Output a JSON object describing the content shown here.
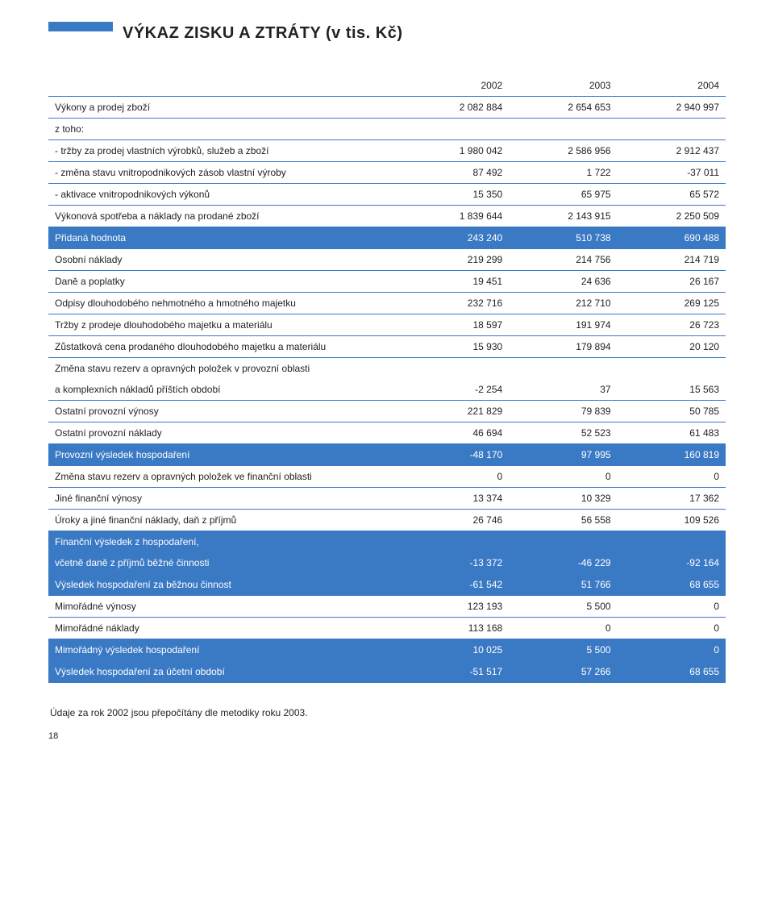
{
  "title": "VÝKAZ ZISKU A ZTRÁTY (v tis. Kč)",
  "colors": {
    "accent": "#3a79c4",
    "text": "#222222",
    "highlight_text": "#ffffff",
    "background": "#ffffff"
  },
  "typography": {
    "title_fontsize": 20,
    "body_fontsize": 12,
    "font_family": "Arial"
  },
  "columns": [
    "",
    "2002",
    "2003",
    "2004"
  ],
  "rows": [
    {
      "label": "Výkony a prodej zboží",
      "v": [
        "2 082 884",
        "2 654 653",
        "2 940 997"
      ],
      "hl": false
    },
    {
      "label": "z toho:",
      "v": [
        "",
        "",
        ""
      ],
      "hl": false
    },
    {
      "label": "- tržby za prodej vlastních výrobků, služeb a zboží",
      "v": [
        "1 980 042",
        "2 586 956",
        "2 912 437"
      ],
      "hl": false
    },
    {
      "label": "- změna stavu vnitropodnikových zásob vlastní výroby",
      "v": [
        "87 492",
        "1 722",
        "-37 011"
      ],
      "hl": false
    },
    {
      "label": "- aktivace vnitropodnikových výkonů",
      "v": [
        "15 350",
        "65 975",
        "65 572"
      ],
      "hl": false
    },
    {
      "label": "Výkonová spotřeba a náklady na prodané zboží",
      "v": [
        "1 839 644",
        "2 143 915",
        "2 250 509"
      ],
      "hl": false
    },
    {
      "label": "Přidaná hodnota",
      "v": [
        "243 240",
        "510 738",
        "690 488"
      ],
      "hl": true
    },
    {
      "label": "Osobní náklady",
      "v": [
        "219 299",
        "214 756",
        "214 719"
      ],
      "hl": false
    },
    {
      "label": "Daně a poplatky",
      "v": [
        "19 451",
        "24 636",
        "26 167"
      ],
      "hl": false
    },
    {
      "label": "Odpisy dlouhodobého nehmotného a hmotného majetku",
      "v": [
        "232 716",
        "212 710",
        "269 125"
      ],
      "hl": false
    },
    {
      "label": "Tržby z prodeje dlouhodobého majetku a materiálu",
      "v": [
        "18 597",
        "191 974",
        "26 723"
      ],
      "hl": false
    },
    {
      "label": "Zůstatková cena prodaného dlouhodobého majetku a materiálu",
      "v": [
        "15 930",
        "179 894",
        "20 120"
      ],
      "hl": false
    },
    {
      "label": "Změna stavu rezerv a opravných položek v provozní oblasti",
      "v": [
        "",
        "",
        ""
      ],
      "hl": false,
      "noborder": true
    },
    {
      "label": "a komplexních nákladů příštích období",
      "v": [
        "-2 254",
        "37",
        "15 563"
      ],
      "hl": false
    },
    {
      "label": "Ostatní provozní výnosy",
      "v": [
        "221 829",
        "79 839",
        "50 785"
      ],
      "hl": false
    },
    {
      "label": "Ostatní provozní náklady",
      "v": [
        "46 694",
        "52 523",
        "61 483"
      ],
      "hl": false
    },
    {
      "label": "Provozní výsledek hospodaření",
      "v": [
        "-48 170",
        "97 995",
        "160 819"
      ],
      "hl": true
    },
    {
      "label": "Změna stavu rezerv a opravných položek ve finanční oblasti",
      "v": [
        "0",
        "0",
        "0"
      ],
      "hl": false
    },
    {
      "label": "Jiné finanční výnosy",
      "v": [
        "13 374",
        "10 329",
        "17 362"
      ],
      "hl": false
    },
    {
      "label": "Úroky a jiné finanční náklady, daň z příjmů",
      "v": [
        "26 746",
        "56 558",
        "109 526"
      ],
      "hl": false
    },
    {
      "label": "Finanční výsledek z hospodaření,",
      "v": [
        "",
        "",
        ""
      ],
      "hl": true,
      "noborder": true
    },
    {
      "label": "včetně daně z příjmů běžné činnosti",
      "v": [
        "-13 372",
        "-46 229",
        "-92 164"
      ],
      "hl": true
    },
    {
      "label": "Výsledek hospodaření za běžnou činnost",
      "v": [
        "-61 542",
        "51 766",
        "68 655"
      ],
      "hl": true
    },
    {
      "label": "Mimořádné výnosy",
      "v": [
        "123 193",
        "5 500",
        "0"
      ],
      "hl": false
    },
    {
      "label": "Mimořádné náklady",
      "v": [
        "113 168",
        "0",
        "0"
      ],
      "hl": false
    },
    {
      "label": "Mimořádný výsledek hospodaření",
      "v": [
        "10 025",
        "5 500",
        "0"
      ],
      "hl": true
    },
    {
      "label": "Výsledek hospodaření za účetní období",
      "v": [
        "-51 517",
        "57 266",
        "68 655"
      ],
      "hl": true
    }
  ],
  "footnote": "Údaje za rok 2002 jsou přepočítány dle metodiky roku 2003.",
  "page_number": "18"
}
